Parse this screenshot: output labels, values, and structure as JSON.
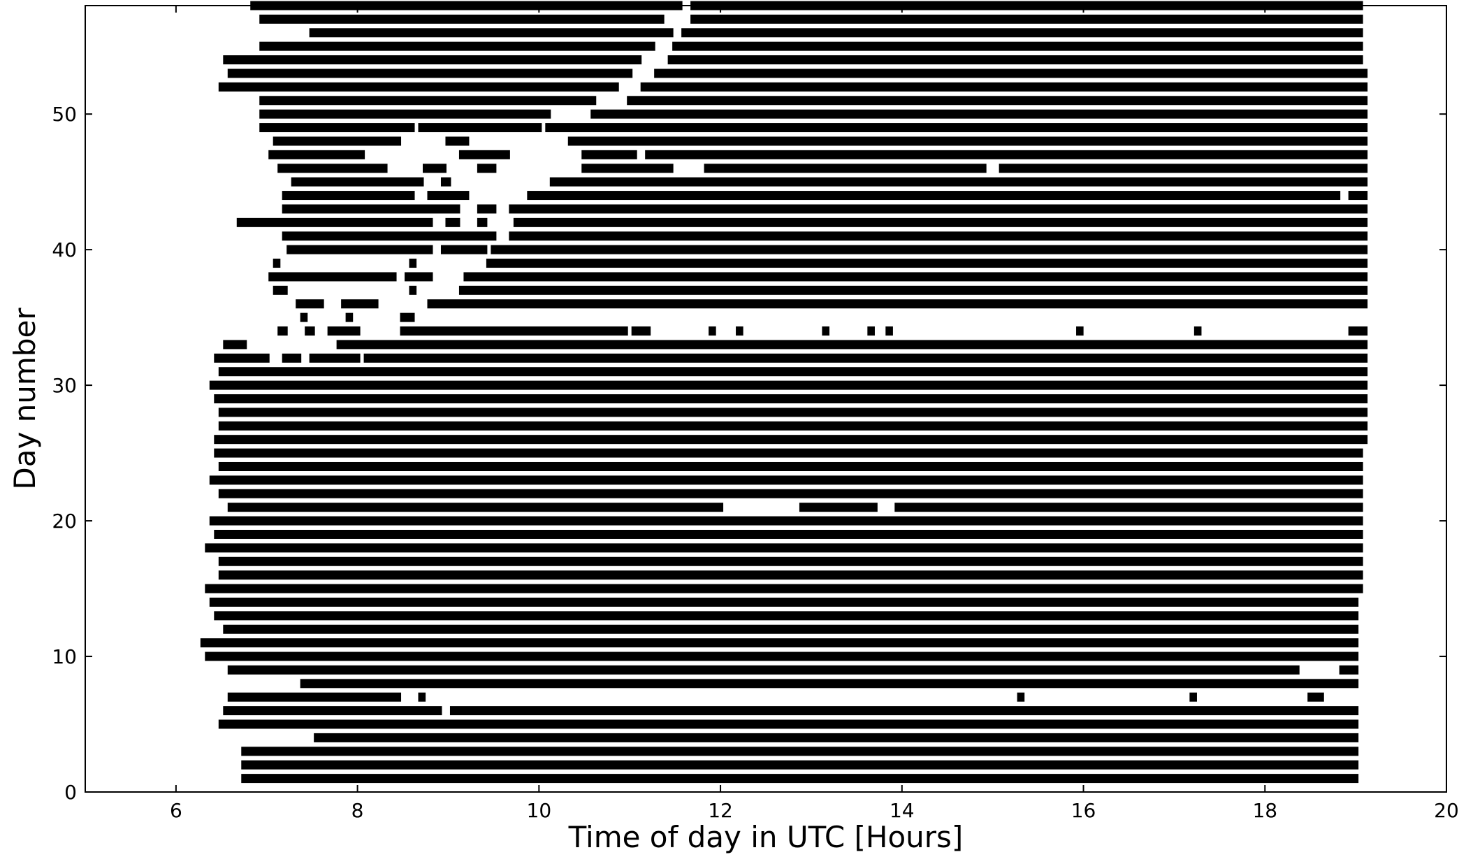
{
  "chart_data": {
    "type": "scatter",
    "title": "",
    "xlabel": "Time of day in UTC [Hours]",
    "ylabel": "Day number",
    "xlim": [
      5,
      20
    ],
    "ylim": [
      0,
      58
    ],
    "x_ticks": [
      "6",
      "8",
      "10",
      "12",
      "14",
      "16",
      "18",
      "20"
    ],
    "y_ticks": [
      "0",
      "10",
      "20",
      "30",
      "40",
      "50"
    ],
    "marker": "star",
    "marker_color": "#000000",
    "grid": false,
    "legend": "none",
    "series": [
      {
        "days": [
          {
            "day": 1,
            "segments": [
              [
                6.75,
                19.0
              ]
            ]
          },
          {
            "day": 2,
            "segments": [
              [
                6.75,
                19.0
              ]
            ]
          },
          {
            "day": 3,
            "segments": [
              [
                6.75,
                19.0
              ]
            ]
          },
          {
            "day": 4,
            "segments": [
              [
                7.55,
                19.0
              ]
            ]
          },
          {
            "day": 5,
            "segments": [
              [
                6.5,
                19.0
              ]
            ]
          },
          {
            "day": 6,
            "segments": [
              [
                6.55,
                8.9
              ],
              [
                9.05,
                19.0
              ]
            ]
          },
          {
            "day": 7,
            "segments": [
              [
                6.6,
                8.45
              ],
              [
                8.7,
                8.72
              ],
              [
                15.3,
                15.32
              ],
              [
                17.2,
                17.22
              ],
              [
                18.5,
                18.62
              ]
            ]
          },
          {
            "day": 8,
            "segments": [
              [
                7.4,
                19.0
              ]
            ]
          },
          {
            "day": 9,
            "segments": [
              [
                6.6,
                18.35
              ],
              [
                18.85,
                19.0
              ]
            ]
          },
          {
            "day": 10,
            "segments": [
              [
                6.35,
                19.0
              ]
            ]
          },
          {
            "day": 11,
            "segments": [
              [
                6.3,
                19.0
              ]
            ]
          },
          {
            "day": 12,
            "segments": [
              [
                6.55,
                19.0
              ]
            ]
          },
          {
            "day": 13,
            "segments": [
              [
                6.45,
                19.0
              ]
            ]
          },
          {
            "day": 14,
            "segments": [
              [
                6.4,
                19.0
              ]
            ]
          },
          {
            "day": 15,
            "segments": [
              [
                6.35,
                19.05
              ]
            ]
          },
          {
            "day": 16,
            "segments": [
              [
                6.5,
                19.05
              ]
            ]
          },
          {
            "day": 17,
            "segments": [
              [
                6.5,
                19.05
              ]
            ]
          },
          {
            "day": 18,
            "segments": [
              [
                6.35,
                19.05
              ]
            ]
          },
          {
            "day": 19,
            "segments": [
              [
                6.45,
                19.05
              ]
            ]
          },
          {
            "day": 20,
            "segments": [
              [
                6.4,
                19.05
              ]
            ]
          },
          {
            "day": 21,
            "segments": [
              [
                6.6,
                12.0
              ],
              [
                12.9,
                13.7
              ],
              [
                13.95,
                19.05
              ]
            ]
          },
          {
            "day": 22,
            "segments": [
              [
                6.5,
                19.05
              ]
            ]
          },
          {
            "day": 23,
            "segments": [
              [
                6.4,
                19.05
              ]
            ]
          },
          {
            "day": 24,
            "segments": [
              [
                6.5,
                19.05
              ]
            ]
          },
          {
            "day": 25,
            "segments": [
              [
                6.45,
                19.05
              ]
            ]
          },
          {
            "day": 26,
            "segments": [
              [
                6.45,
                19.1
              ]
            ]
          },
          {
            "day": 27,
            "segments": [
              [
                6.5,
                19.1
              ]
            ]
          },
          {
            "day": 28,
            "segments": [
              [
                6.5,
                19.1
              ]
            ]
          },
          {
            "day": 29,
            "segments": [
              [
                6.45,
                19.1
              ]
            ]
          },
          {
            "day": 30,
            "segments": [
              [
                6.4,
                19.1
              ]
            ]
          },
          {
            "day": 31,
            "segments": [
              [
                6.5,
                19.1
              ]
            ]
          },
          {
            "day": 32,
            "segments": [
              [
                6.45,
                7.0
              ],
              [
                7.2,
                7.35
              ],
              [
                7.5,
                8.0
              ],
              [
                8.1,
                19.1
              ]
            ]
          },
          {
            "day": 33,
            "segments": [
              [
                6.55,
                6.75
              ],
              [
                7.8,
                19.1
              ]
            ]
          },
          {
            "day": 34,
            "segments": [
              [
                7.15,
                7.2
              ],
              [
                7.45,
                7.5
              ],
              [
                7.7,
                8.0
              ],
              [
                8.5,
                10.95
              ],
              [
                11.05,
                11.2
              ],
              [
                11.9,
                11.92
              ],
              [
                12.2,
                12.22
              ],
              [
                13.15,
                13.17
              ],
              [
                13.65,
                13.67
              ],
              [
                13.85,
                13.87
              ],
              [
                15.95,
                15.97
              ],
              [
                17.25,
                17.27
              ],
              [
                18.95,
                19.1
              ]
            ]
          },
          {
            "day": 35,
            "segments": [
              [
                7.4,
                7.42
              ],
              [
                7.9,
                7.92
              ],
              [
                8.5,
                8.6
              ]
            ]
          },
          {
            "day": 36,
            "segments": [
              [
                7.35,
                7.6
              ],
              [
                7.85,
                8.2
              ],
              [
                8.8,
                19.1
              ]
            ]
          },
          {
            "day": 37,
            "segments": [
              [
                7.1,
                7.2
              ],
              [
                8.6,
                8.62
              ],
              [
                9.15,
                19.1
              ]
            ]
          },
          {
            "day": 38,
            "segments": [
              [
                7.05,
                8.4
              ],
              [
                8.55,
                8.8
              ],
              [
                9.2,
                19.1
              ]
            ]
          },
          {
            "day": 39,
            "segments": [
              [
                7.1,
                7.12
              ],
              [
                8.6,
                8.62
              ],
              [
                9.45,
                19.1
              ]
            ]
          },
          {
            "day": 40,
            "segments": [
              [
                7.25,
                8.8
              ],
              [
                8.95,
                9.4
              ],
              [
                9.5,
                19.1
              ]
            ]
          },
          {
            "day": 41,
            "segments": [
              [
                7.2,
                9.5
              ],
              [
                9.7,
                19.1
              ]
            ]
          },
          {
            "day": 42,
            "segments": [
              [
                6.7,
                8.8
              ],
              [
                9.0,
                9.1
              ],
              [
                9.35,
                9.4
              ],
              [
                9.75,
                19.1
              ]
            ]
          },
          {
            "day": 43,
            "segments": [
              [
                7.2,
                9.1
              ],
              [
                9.35,
                9.5
              ],
              [
                9.7,
                19.1
              ]
            ]
          },
          {
            "day": 44,
            "segments": [
              [
                7.2,
                8.6
              ],
              [
                8.8,
                9.2
              ],
              [
                9.9,
                18.8
              ],
              [
                18.95,
                19.1
              ]
            ]
          },
          {
            "day": 45,
            "segments": [
              [
                7.3,
                8.7
              ],
              [
                8.95,
                9.0
              ],
              [
                10.15,
                19.1
              ]
            ]
          },
          {
            "day": 46,
            "segments": [
              [
                7.15,
                8.3
              ],
              [
                8.75,
                8.95
              ],
              [
                9.35,
                9.5
              ],
              [
                10.5,
                11.45
              ],
              [
                11.85,
                14.9
              ],
              [
                15.1,
                19.1
              ]
            ]
          },
          {
            "day": 47,
            "segments": [
              [
                7.05,
                8.05
              ],
              [
                9.15,
                9.65
              ],
              [
                10.5,
                11.05
              ],
              [
                11.2,
                19.1
              ]
            ]
          },
          {
            "day": 48,
            "segments": [
              [
                7.1,
                8.45
              ],
              [
                9.0,
                9.2
              ],
              [
                10.35,
                19.1
              ]
            ]
          },
          {
            "day": 49,
            "segments": [
              [
                6.95,
                8.6
              ],
              [
                8.7,
                10.0
              ],
              [
                10.1,
                19.1
              ]
            ]
          },
          {
            "day": 50,
            "segments": [
              [
                6.95,
                10.1
              ],
              [
                10.6,
                19.1
              ]
            ]
          },
          {
            "day": 51,
            "segments": [
              [
                6.95,
                10.6
              ],
              [
                11.0,
                19.1
              ]
            ]
          },
          {
            "day": 52,
            "segments": [
              [
                6.5,
                10.85
              ],
              [
                11.15,
                19.1
              ]
            ]
          },
          {
            "day": 53,
            "segments": [
              [
                6.6,
                11.0
              ],
              [
                11.3,
                19.1
              ]
            ]
          },
          {
            "day": 54,
            "segments": [
              [
                6.55,
                11.1
              ],
              [
                11.45,
                19.05
              ]
            ]
          },
          {
            "day": 55,
            "segments": [
              [
                6.95,
                11.25
              ],
              [
                11.5,
                19.05
              ]
            ]
          },
          {
            "day": 56,
            "segments": [
              [
                7.5,
                11.45
              ],
              [
                11.6,
                19.05
              ]
            ]
          },
          {
            "day": 57,
            "segments": [
              [
                6.95,
                11.35
              ],
              [
                11.7,
                19.05
              ]
            ]
          },
          {
            "day": 58,
            "segments": [
              [
                6.85,
                11.55
              ],
              [
                11.7,
                19.05
              ]
            ]
          }
        ]
      }
    ]
  }
}
